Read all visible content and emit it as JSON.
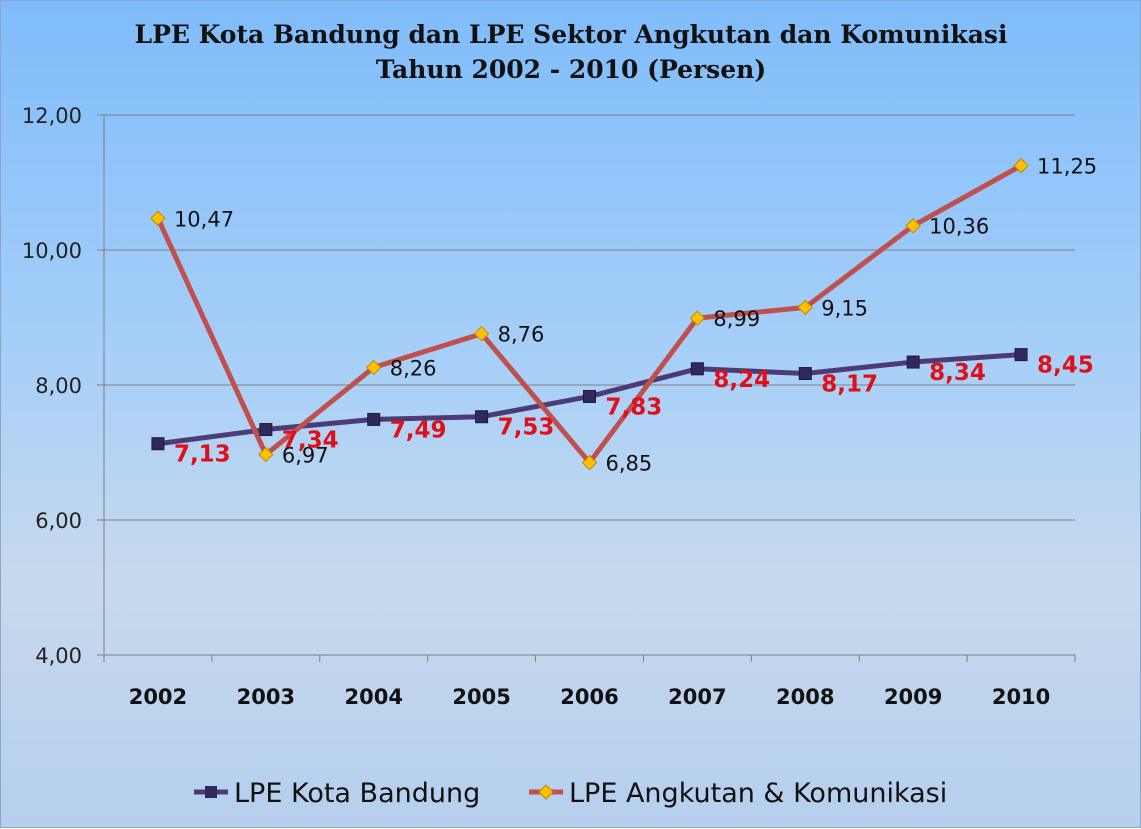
{
  "chart_data": {
    "type": "line",
    "title_line1": "LPE Kota Bandung  dan LPE Sektor Angkutan dan Komunikasi",
    "title_line2": "Tahun 2002 - 2010 (Persen)",
    "categories": [
      "2002",
      "2003",
      "2004",
      "2005",
      "2006",
      "2007",
      "2008",
      "2009",
      "2010"
    ],
    "ylim": [
      4,
      12
    ],
    "yticks": [
      {
        "value": 4,
        "label": "4,00"
      },
      {
        "value": 6,
        "label": "6,00"
      },
      {
        "value": 8,
        "label": "8,00"
      },
      {
        "value": 10,
        "label": "10,00"
      },
      {
        "value": 12,
        "label": "12,00"
      }
    ],
    "grid": true,
    "legend_position": "bottom",
    "series": [
      {
        "name": "LPE Kota Bandung",
        "color": "#4b3c78",
        "marker": "square",
        "values": [
          7.13,
          7.34,
          7.49,
          7.53,
          7.83,
          8.24,
          8.17,
          8.34,
          8.45
        ],
        "labels": [
          "7,13",
          "7,34",
          "7,49",
          "7,53",
          "7,83",
          "8,24",
          "8,17",
          "8,34",
          "8,45"
        ]
      },
      {
        "name": "LPE Angkutan & Komunikasi",
        "color": "#c0504d",
        "marker_color": "#ffc000",
        "marker": "diamond",
        "values": [
          10.47,
          6.97,
          8.26,
          8.76,
          6.85,
          8.99,
          9.15,
          10.36,
          11.25
        ],
        "labels": [
          "10,47",
          "6,97",
          "8,26",
          "8,76",
          "6,85",
          "8,99",
          "9,15",
          "10,36",
          "11,25"
        ]
      }
    ]
  }
}
